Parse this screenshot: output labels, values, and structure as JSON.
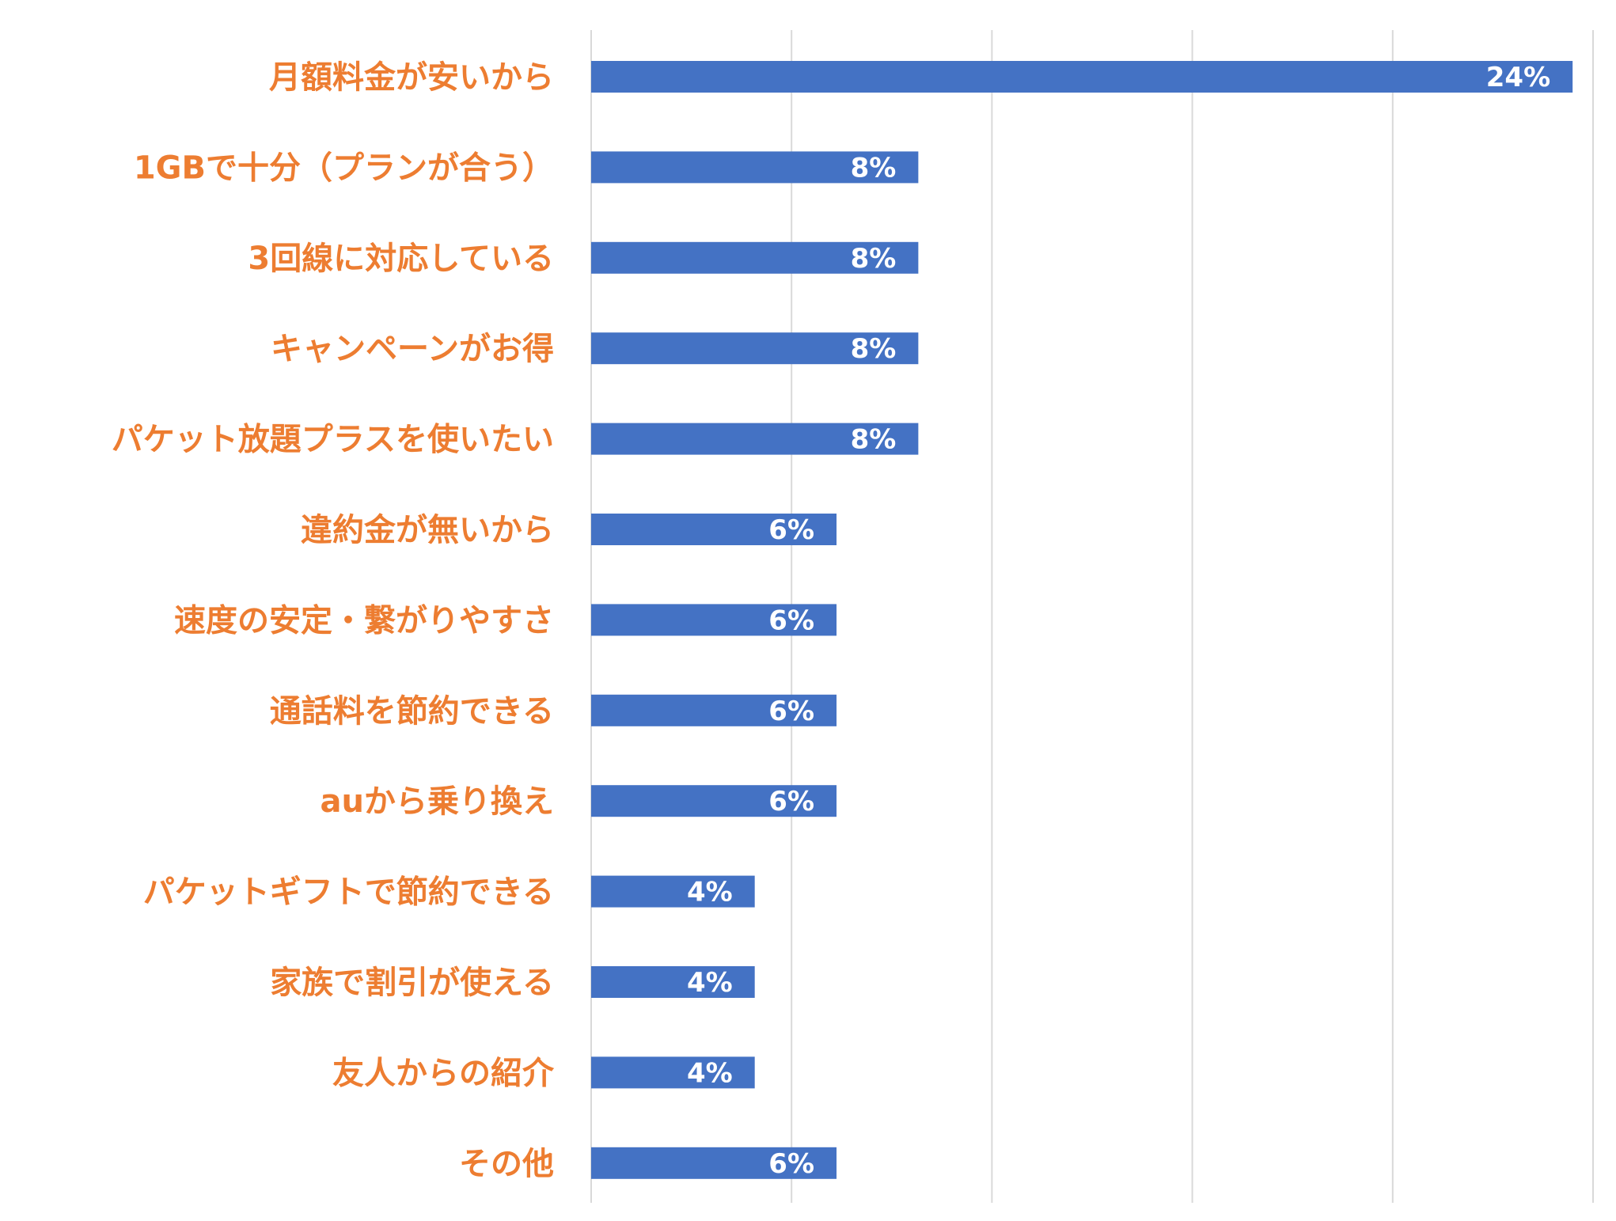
{
  "chart_data": {
    "type": "bar",
    "orientation": "horizontal",
    "categories": [
      "月額料金が安いから",
      "1GBで十分（プランが合う）",
      "3回線に対応している",
      "キャンペーンがお得",
      "パケット放題プラスを使いたい",
      "違約金が無いから",
      "速度の安定・繋がりやすさ",
      "通話料を節約できる",
      "auから乗り換え",
      "パケットギフトで節約できる",
      "家族で割引が使える",
      "友人からの紹介",
      "その他"
    ],
    "values": [
      24,
      8,
      8,
      8,
      8,
      6,
      6,
      6,
      6,
      4,
      4,
      4,
      6
    ],
    "data_labels": [
      "24%",
      "8%",
      "8%",
      "8%",
      "8%",
      "6%",
      "6%",
      "6%",
      "6%",
      "4%",
      "4%",
      "4%",
      "6%"
    ],
    "unit": "%",
    "xlim": [
      0,
      24.5
    ],
    "gridlines_at": [
      0,
      4.9,
      9.8,
      14.7,
      19.6,
      24.5
    ],
    "grid": true,
    "legend": "none",
    "title": "",
    "xlabel": "",
    "ylabel": "",
    "colors": {
      "bar": "#4472C4",
      "category_label": "#ED7D31",
      "data_label": "#FFFFFF",
      "gridline": "#D9D9D9"
    }
  }
}
